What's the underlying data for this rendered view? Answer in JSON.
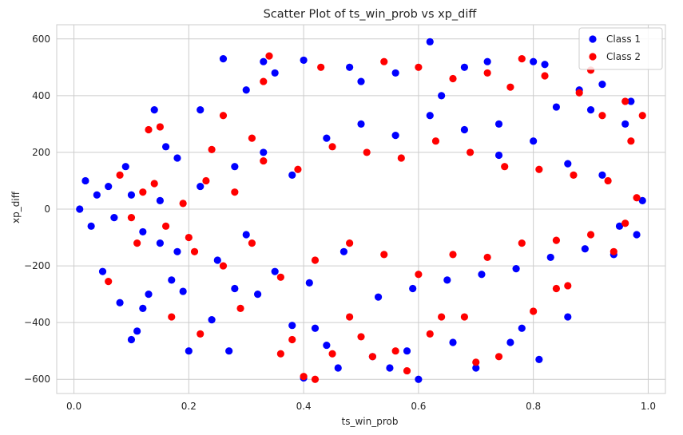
{
  "chart_data": {
    "type": "scatter",
    "title": "Scatter Plot of ts_win_prob vs xp_diff",
    "xlabel": "ts_win_prob",
    "ylabel": "xp_diff",
    "xlim": [
      -0.03,
      1.03
    ],
    "ylim": [
      -650,
      650
    ],
    "xticks": [
      0.0,
      0.2,
      0.4,
      0.6,
      0.8,
      1.0
    ],
    "xtick_labels": [
      "0.0",
      "0.2",
      "0.4",
      "0.6",
      "0.8",
      "1.0"
    ],
    "yticks": [
      -600,
      -400,
      -200,
      0,
      200,
      400,
      600
    ],
    "ytick_labels": [
      "−600",
      "−400",
      "−200",
      "0",
      "200",
      "400",
      "600"
    ],
    "grid": true,
    "legend_position": "top-right",
    "series": [
      {
        "name": "Class 1",
        "color": "#0000ff",
        "points": [
          [
            0.01,
            0
          ],
          [
            0.02,
            100
          ],
          [
            0.03,
            -60
          ],
          [
            0.04,
            50
          ],
          [
            0.05,
            -220
          ],
          [
            0.06,
            80
          ],
          [
            0.07,
            -30
          ],
          [
            0.08,
            -330
          ],
          [
            0.09,
            150
          ],
          [
            0.1,
            -460
          ],
          [
            0.11,
            -430
          ],
          [
            0.12,
            -350
          ],
          [
            0.13,
            -300
          ],
          [
            0.14,
            350
          ],
          [
            0.15,
            -120
          ],
          [
            0.16,
            220
          ],
          [
            0.17,
            -250
          ],
          [
            0.18,
            180
          ],
          [
            0.19,
            -290
          ],
          [
            0.2,
            -500
          ],
          [
            0.22,
            350
          ],
          [
            0.24,
            -390
          ],
          [
            0.26,
            530
          ],
          [
            0.27,
            -500
          ],
          [
            0.28,
            -280
          ],
          [
            0.3,
            420
          ],
          [
            0.32,
            -300
          ],
          [
            0.33,
            520
          ],
          [
            0.35,
            480
          ],
          [
            0.38,
            -410
          ],
          [
            0.4,
            525
          ],
          [
            0.4,
            -595
          ],
          [
            0.42,
            -420
          ],
          [
            0.44,
            -480
          ],
          [
            0.46,
            -560
          ],
          [
            0.48,
            500
          ],
          [
            0.5,
            450
          ],
          [
            0.52,
            -520
          ],
          [
            0.55,
            -560
          ],
          [
            0.56,
            480
          ],
          [
            0.58,
            -500
          ],
          [
            0.6,
            -600
          ],
          [
            0.62,
            590
          ],
          [
            0.64,
            400
          ],
          [
            0.66,
            -470
          ],
          [
            0.68,
            500
          ],
          [
            0.7,
            -560
          ],
          [
            0.72,
            520
          ],
          [
            0.74,
            300
          ],
          [
            0.76,
            -470
          ],
          [
            0.78,
            -420
          ],
          [
            0.8,
            520
          ],
          [
            0.81,
            -530
          ],
          [
            0.82,
            510
          ],
          [
            0.84,
            360
          ],
          [
            0.86,
            -380
          ],
          [
            0.88,
            420
          ],
          [
            0.9,
            350
          ],
          [
            0.92,
            440
          ],
          [
            0.94,
            -160
          ],
          [
            0.96,
            300
          ],
          [
            0.97,
            380
          ],
          [
            0.98,
            -90
          ],
          [
            0.99,
            30
          ],
          [
            0.1,
            50
          ],
          [
            0.12,
            -80
          ],
          [
            0.15,
            30
          ],
          [
            0.18,
            -150
          ],
          [
            0.22,
            80
          ],
          [
            0.25,
            -180
          ],
          [
            0.28,
            150
          ],
          [
            0.3,
            -90
          ],
          [
            0.33,
            200
          ],
          [
            0.35,
            -220
          ],
          [
            0.38,
            120
          ],
          [
            0.41,
            -260
          ],
          [
            0.44,
            250
          ],
          [
            0.47,
            -150
          ],
          [
            0.5,
            300
          ],
          [
            0.53,
            -310
          ],
          [
            0.56,
            260
          ],
          [
            0.59,
            -280
          ],
          [
            0.62,
            330
          ],
          [
            0.65,
            -250
          ],
          [
            0.68,
            280
          ],
          [
            0.71,
            -230
          ],
          [
            0.74,
            190
          ],
          [
            0.77,
            -210
          ],
          [
            0.8,
            240
          ],
          [
            0.83,
            -170
          ],
          [
            0.86,
            160
          ],
          [
            0.89,
            -140
          ],
          [
            0.92,
            120
          ],
          [
            0.95,
            -60
          ]
        ]
      },
      {
        "name": "Class 2",
        "color": "#ff0000",
        "points": [
          [
            0.06,
            -255
          ],
          [
            0.08,
            120
          ],
          [
            0.1,
            -30
          ],
          [
            0.12,
            60
          ],
          [
            0.13,
            280
          ],
          [
            0.15,
            290
          ],
          [
            0.17,
            -380
          ],
          [
            0.2,
            -100
          ],
          [
            0.22,
            -440
          ],
          [
            0.24,
            210
          ],
          [
            0.26,
            330
          ],
          [
            0.29,
            -350
          ],
          [
            0.31,
            250
          ],
          [
            0.33,
            450
          ],
          [
            0.34,
            540
          ],
          [
            0.36,
            -510
          ],
          [
            0.38,
            -460
          ],
          [
            0.4,
            -590
          ],
          [
            0.42,
            -600
          ],
          [
            0.43,
            500
          ],
          [
            0.45,
            -510
          ],
          [
            0.48,
            -380
          ],
          [
            0.5,
            -450
          ],
          [
            0.52,
            -520
          ],
          [
            0.54,
            520
          ],
          [
            0.56,
            -500
          ],
          [
            0.58,
            -570
          ],
          [
            0.6,
            500
          ],
          [
            0.62,
            -440
          ],
          [
            0.64,
            -380
          ],
          [
            0.66,
            460
          ],
          [
            0.68,
            -380
          ],
          [
            0.7,
            -540
          ],
          [
            0.72,
            480
          ],
          [
            0.74,
            -520
          ],
          [
            0.76,
            430
          ],
          [
            0.78,
            530
          ],
          [
            0.8,
            -360
          ],
          [
            0.82,
            470
          ],
          [
            0.84,
            -280
          ],
          [
            0.86,
            -270
          ],
          [
            0.88,
            410
          ],
          [
            0.9,
            490
          ],
          [
            0.92,
            330
          ],
          [
            0.94,
            -150
          ],
          [
            0.96,
            380
          ],
          [
            0.97,
            240
          ],
          [
            0.99,
            330
          ],
          [
            0.11,
            -120
          ],
          [
            0.14,
            90
          ],
          [
            0.16,
            -60
          ],
          [
            0.19,
            20
          ],
          [
            0.21,
            -150
          ],
          [
            0.23,
            100
          ],
          [
            0.26,
            -200
          ],
          [
            0.28,
            60
          ],
          [
            0.31,
            -120
          ],
          [
            0.33,
            170
          ],
          [
            0.36,
            -240
          ],
          [
            0.39,
            140
          ],
          [
            0.42,
            -180
          ],
          [
            0.45,
            220
          ],
          [
            0.48,
            -120
          ],
          [
            0.51,
            200
          ],
          [
            0.54,
            -160
          ],
          [
            0.57,
            180
          ],
          [
            0.6,
            -230
          ],
          [
            0.63,
            240
          ],
          [
            0.66,
            -160
          ],
          [
            0.69,
            200
          ],
          [
            0.72,
            -170
          ],
          [
            0.75,
            150
          ],
          [
            0.78,
            -120
          ],
          [
            0.81,
            140
          ],
          [
            0.84,
            -110
          ],
          [
            0.87,
            120
          ],
          [
            0.9,
            -90
          ],
          [
            0.93,
            100
          ],
          [
            0.96,
            -50
          ],
          [
            0.98,
            40
          ]
        ]
      }
    ]
  }
}
